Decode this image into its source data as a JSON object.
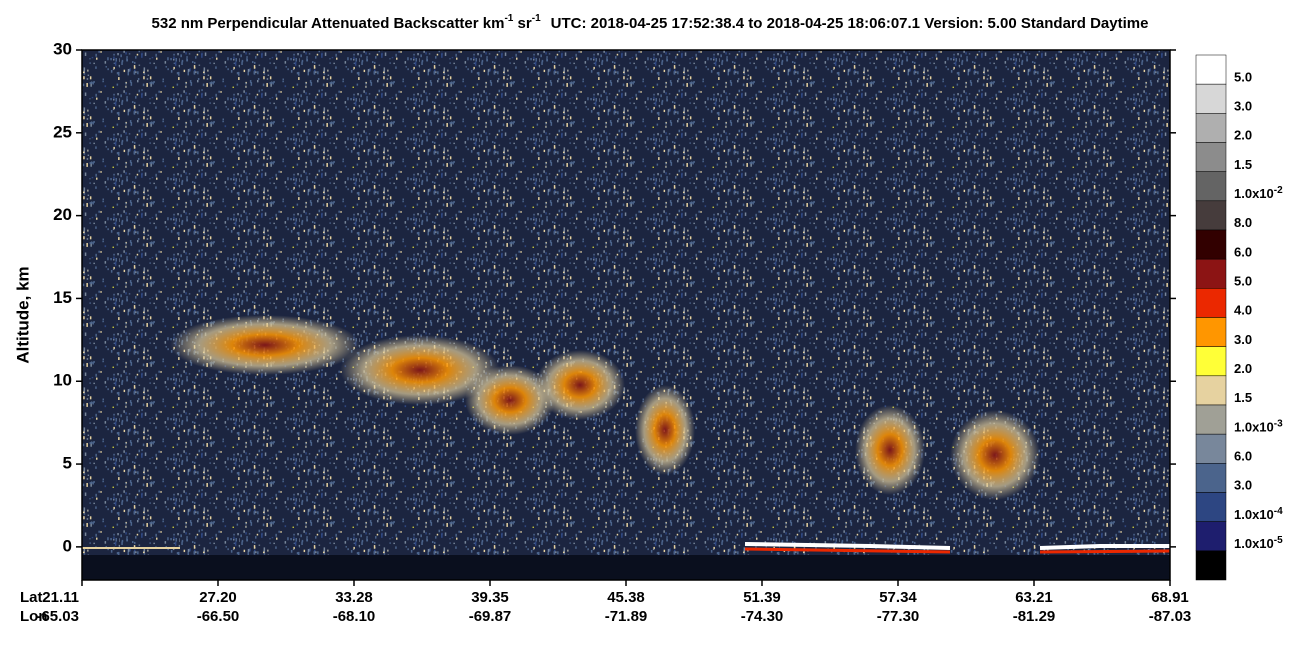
{
  "chart_data": {
    "type": "curtain",
    "title_parts": [
      "532 nm Perpendicular Attenuated Backscatter km",
      "-1",
      " sr",
      "-1",
      "UTC: 2018-04-25 17:52:38.4 to 2018-04-25 18:06:07.1  Version: 5.00 Standard Daytime"
    ],
    "y_label": "Altitude, km",
    "ylim": [
      -2,
      30
    ],
    "yticks": [
      0,
      5,
      10,
      15,
      20,
      25,
      30
    ],
    "x_row_labels": [
      "Lat",
      "Lon"
    ],
    "lat": [
      "21.11",
      "27.20",
      "33.28",
      "39.35",
      "45.38",
      "51.39",
      "57.34",
      "63.21",
      "68.91"
    ],
    "lon": [
      "-65.03",
      "-66.50",
      "-68.10",
      "-69.87",
      "-71.89",
      "-74.30",
      "-77.30",
      "-81.29",
      "-87.03"
    ],
    "colorbar": {
      "colors": [
        "#ffffff",
        "#d7d7d7",
        "#afafaf",
        "#8c8c8c",
        "#646464",
        "#463c3c",
        "#320000",
        "#8c1414",
        "#eb2800",
        "#ff9600",
        "#ffff37",
        "#e6d2a0",
        "#a0a096",
        "#78879b",
        "#4b648c",
        "#2d4682",
        "#1e1e6e",
        "#000000"
      ],
      "labels": [
        {
          "text": "5.0"
        },
        {
          "text": "3.0"
        },
        {
          "text": "2.0"
        },
        {
          "text": "1.5"
        },
        {
          "text": "1.0x10",
          "exp": "-2"
        },
        {
          "text": "8.0"
        },
        {
          "text": "6.0"
        },
        {
          "text": "5.0"
        },
        {
          "text": "4.0"
        },
        {
          "text": "3.0"
        },
        {
          "text": "2.0"
        },
        {
          "text": "1.5"
        },
        {
          "text": "1.0x10",
          "exp": "-3"
        },
        {
          "text": "6.0"
        },
        {
          "text": "3.0"
        },
        {
          "text": "1.0x10",
          "exp": "-4"
        },
        {
          "text": "1.0x10",
          "exp": "-5"
        }
      ]
    }
  }
}
